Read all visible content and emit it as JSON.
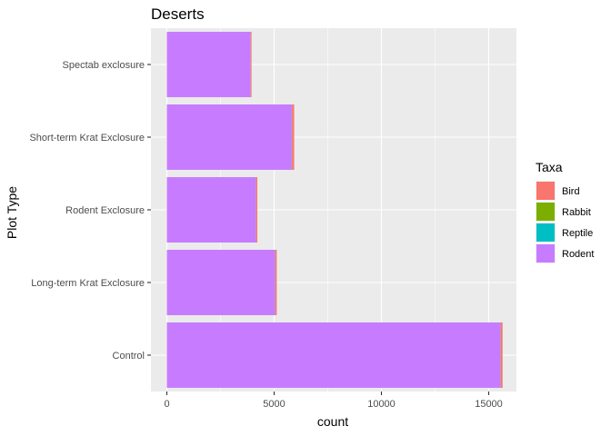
{
  "chart_data": {
    "type": "bar",
    "orientation": "horizontal",
    "stacked": true,
    "title": "Deserts",
    "xlabel": "count",
    "ylabel": "Plot Type",
    "xlim": [
      0,
      16000
    ],
    "xticks": [
      0,
      5000,
      10000,
      15000
    ],
    "xtick_labels": [
      "0",
      "5000",
      "10000",
      "15000"
    ],
    "categories": [
      "Control",
      "Long-term Krat Exclosure",
      "Rodent Exclosure",
      "Short-term Krat Exclosure",
      "Spectab exclosure"
    ],
    "series": [
      {
        "name": "Rodent",
        "color": "#C77CFF",
        "values": [
          15550,
          5050,
          4150,
          5820,
          3900
        ]
      },
      {
        "name": "Reptile",
        "color": "#00BFC4",
        "values": [
          5,
          3,
          2,
          4,
          2
        ]
      },
      {
        "name": "Rabbit",
        "color": "#7CAE00",
        "values": [
          10,
          8,
          6,
          8,
          4
        ]
      },
      {
        "name": "Bird",
        "color": "#F8766D",
        "values": [
          80,
          60,
          60,
          100,
          40
        ]
      }
    ],
    "legend": {
      "title": "Taxa",
      "position": "right",
      "entries": [
        {
          "label": "Bird",
          "color": "#F8766D"
        },
        {
          "label": "Rabbit",
          "color": "#7CAE00"
        },
        {
          "label": "Reptile",
          "color": "#00BFC4"
        },
        {
          "label": "Rodent",
          "color": "#C77CFF"
        }
      ]
    },
    "grid": true,
    "panel_background": "#EBEBEB",
    "grid_color": "#FFFFFF"
  }
}
